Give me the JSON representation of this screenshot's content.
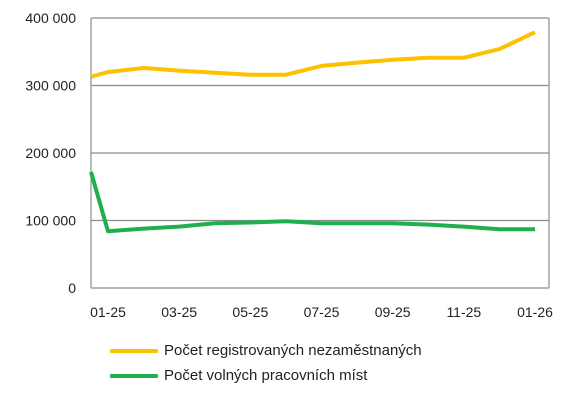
{
  "chart_data": {
    "type": "line",
    "title": "",
    "xlabel": "",
    "ylabel": "",
    "x": [
      "01-25",
      "02-25",
      "03-25",
      "04-25",
      "05-25",
      "06-25",
      "07-25",
      "08-25",
      "09-25",
      "10-25",
      "11-25",
      "12-25",
      "01-26"
    ],
    "x_tick_labels": [
      "01-25",
      "03-25",
      "05-25",
      "07-25",
      "09-25",
      "11-25",
      "01-26"
    ],
    "y_tick_labels": [
      "0",
      "100 000",
      "200 000",
      "300 000",
      "400 000"
    ],
    "y_ticks": [
      0,
      100000,
      200000,
      300000,
      400000
    ],
    "ylim": [
      0,
      400000
    ],
    "grid": "horizontal",
    "legend_position": "bottom",
    "series": [
      {
        "name": "Počet registrovaných nezaměstnaných",
        "color": "#FFC000",
        "start": 313000,
        "values": [
          320000,
          326000,
          322000,
          319000,
          316000,
          316000,
          329000,
          334000,
          338000,
          341000,
          341000,
          354000,
          379000
        ]
      },
      {
        "name": "Počet volných pracovních míst",
        "color": "#1FAF4F",
        "start": 172000,
        "values": [
          84000,
          88000,
          91000,
          96000,
          97000,
          99000,
          96000,
          96000,
          96000,
          94000,
          91000,
          87000,
          87000
        ]
      }
    ]
  }
}
